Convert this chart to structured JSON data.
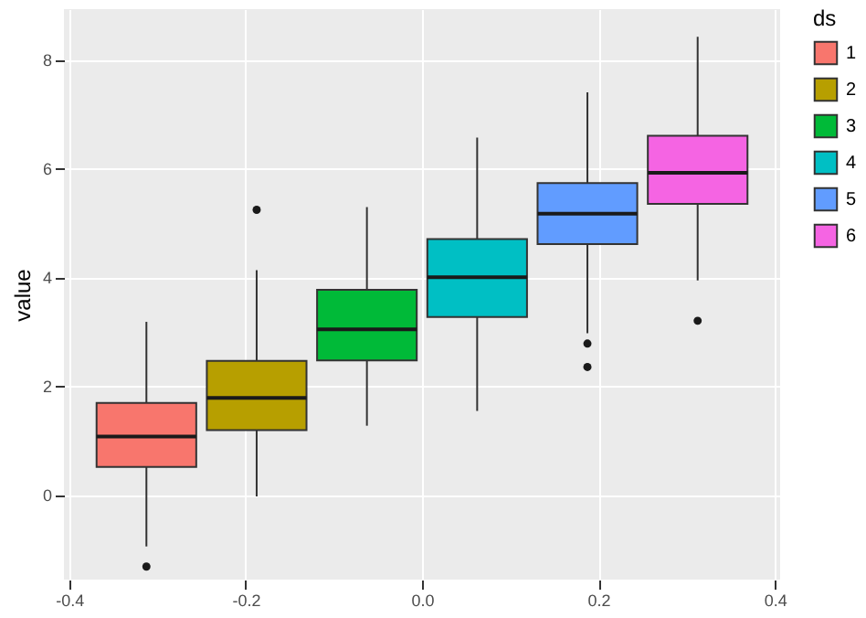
{
  "chart_data": {
    "type": "box",
    "ylabel": "value",
    "legend_title": "ds",
    "legend": "right",
    "grid": true,
    "xlim": [
      -0.406,
      0.406
    ],
    "ylim": [
      -1.56,
      8.93
    ],
    "xticks": [
      {
        "value": -0.4,
        "label": "-0.4"
      },
      {
        "value": -0.2,
        "label": "-0.2"
      },
      {
        "value": 0,
        "label": "0.0"
      },
      {
        "value": 0.2,
        "label": "0.2"
      },
      {
        "value": 0.4,
        "label": "0.4"
      }
    ],
    "yticks": [
      0,
      2,
      4,
      6,
      8
    ],
    "series": [
      {
        "name": "1",
        "color": "#f8766d",
        "x": [
          -0.3125
        ],
        "boxes": [
          {
            "low": -0.95,
            "q1": 0.51,
            "median": 1.07,
            "q3": 1.69,
            "high": 3.18,
            "outliers": [
              -1.32
            ]
          }
        ]
      },
      {
        "name": "2",
        "color": "#b79f00",
        "x": [
          -0.1875
        ],
        "boxes": [
          {
            "low": -0.03,
            "q1": 1.19,
            "median": 1.78,
            "q3": 2.46,
            "high": 4.13,
            "outliers": [
              5.24
            ]
          }
        ]
      },
      {
        "name": "3",
        "color": "#00ba38",
        "x": [
          -0.0625
        ],
        "boxes": [
          {
            "low": 1.27,
            "q1": 2.47,
            "median": 3.04,
            "q3": 3.77,
            "high": 5.29
          }
        ]
      },
      {
        "name": "4",
        "color": "#00bfc4",
        "x": [
          0.0625
        ],
        "boxes": [
          {
            "low": 1.54,
            "q1": 3.27,
            "median": 4.0,
            "q3": 4.7,
            "high": 6.57
          }
        ]
      },
      {
        "name": "5",
        "color": "#619cff",
        "x": [
          0.1875
        ],
        "boxes": [
          {
            "low": 2.97,
            "q1": 4.61,
            "median": 5.17,
            "q3": 5.73,
            "high": 7.4,
            "outliers": [
              2.78,
              2.35
            ]
          }
        ]
      },
      {
        "name": "6",
        "color": "#f564e3",
        "x": [
          0.3125
        ],
        "boxes": [
          {
            "low": 3.94,
            "q1": 5.35,
            "median": 5.92,
            "q3": 6.6,
            "high": 8.42,
            "outliers": [
              3.2
            ]
          }
        ]
      }
    ]
  }
}
